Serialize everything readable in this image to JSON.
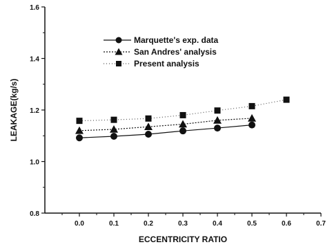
{
  "chart_data": {
    "type": "line",
    "title": "",
    "xlabel": "ECCENTRICITY RATIO",
    "ylabel": "LEAKAGE(kg/s)",
    "xlim": [
      -0.1,
      0.7
    ],
    "ylim": [
      0.8,
      1.6
    ],
    "xticks": [
      "0.0",
      "0.1",
      "0.2",
      "0.3",
      "0.4",
      "0.5",
      "0.6",
      "0.7"
    ],
    "yticks": [
      "0.8",
      "1.0",
      "1.2",
      "1.4",
      "1.6"
    ],
    "grid": false,
    "legend_position": "top-center",
    "series": [
      {
        "name": "Marquette's exp. data",
        "marker": "circle",
        "line_style": "solid",
        "color": "#111111",
        "x": [
          0.0,
          0.1,
          0.2,
          0.3,
          0.4,
          0.5
        ],
        "y": [
          1.092,
          1.098,
          1.106,
          1.119,
          1.13,
          1.142
        ]
      },
      {
        "name": "San Andres' analysis",
        "marker": "triangle",
        "line_style": "dotted",
        "color": "#111111",
        "x": [
          0.0,
          0.1,
          0.2,
          0.3,
          0.4,
          0.5
        ],
        "y": [
          1.12,
          1.125,
          1.135,
          1.145,
          1.16,
          1.168
        ]
      },
      {
        "name": "Present analysis",
        "marker": "square",
        "line_style": "dotted-light",
        "color": "#111111",
        "x": [
          0.0,
          0.1,
          0.2,
          0.3,
          0.4,
          0.5,
          0.6
        ],
        "y": [
          1.158,
          1.162,
          1.167,
          1.18,
          1.198,
          1.215,
          1.24
        ]
      }
    ]
  }
}
